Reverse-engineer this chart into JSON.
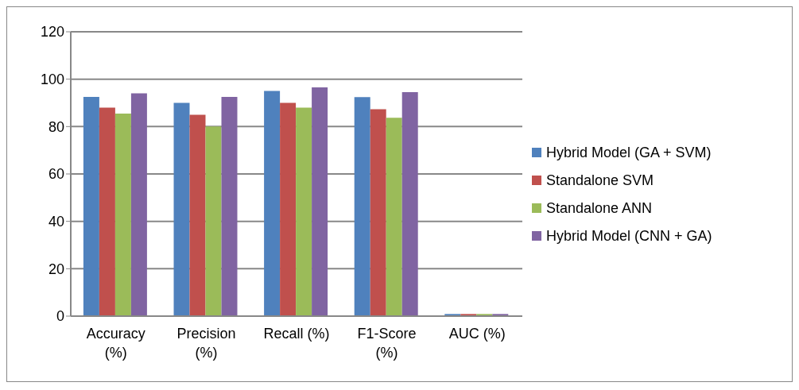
{
  "chart_data": {
    "type": "bar",
    "categories": [
      "Accuracy (%)",
      "Precision (%)",
      "Recall (%)",
      "F1-Score (%)",
      "AUC (%)"
    ],
    "series": [
      {
        "name": "Hybrid Model (GA + SVM)",
        "color": "#4f81bd",
        "values": [
          92.5,
          90,
          95,
          92.4,
          0.9
        ]
      },
      {
        "name": "Standalone SVM",
        "color": "#c0504d",
        "values": [
          88,
          85,
          90,
          87.3,
          0.9
        ]
      },
      {
        "name": "Standalone ANN",
        "color": "#9bbb59",
        "values": [
          85.5,
          80,
          88,
          83.7,
          0.9
        ]
      },
      {
        "name": "Hybrid Model (CNN + GA)",
        "color": "#8064a2",
        "values": [
          94,
          92.5,
          96.5,
          94.5,
          0.9
        ]
      }
    ],
    "ylim": [
      0,
      120
    ],
    "yticks": [
      0,
      20,
      40,
      60,
      80,
      100,
      120
    ],
    "grid": "y",
    "legend": "right"
  }
}
